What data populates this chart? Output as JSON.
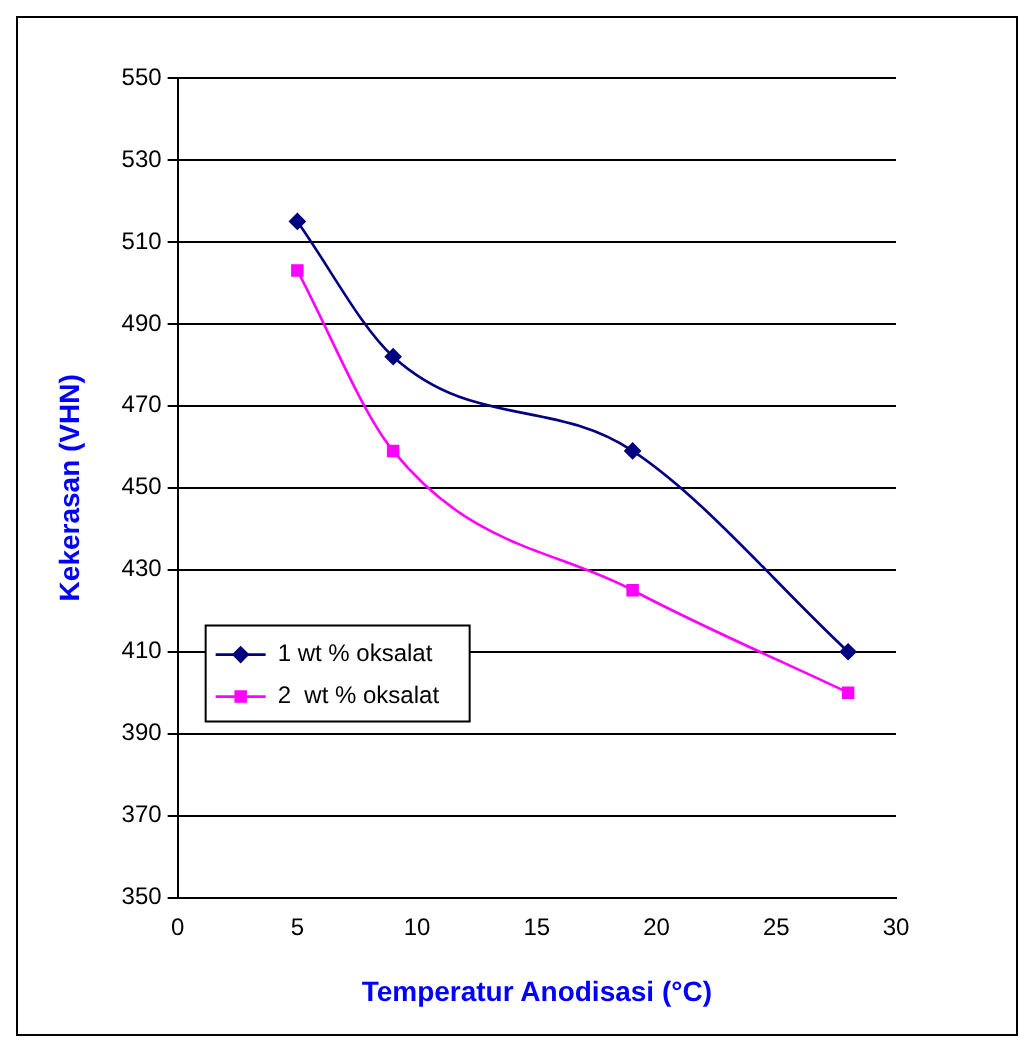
{
  "chart_data": {
    "type": "line",
    "xlabel": "Temperatur Anodisasi (°C)",
    "ylabel": "Kekerasan (VHN)",
    "x": [
      5,
      9,
      19,
      28
    ],
    "series": [
      {
        "name": "1 wt % oksalat",
        "color": "#000080",
        "marker": "diamond",
        "values": [
          515,
          482,
          459,
          410
        ]
      },
      {
        "name": "2  wt % oksalat",
        "color": "#ff00ff",
        "marker": "square",
        "values": [
          503,
          459,
          425,
          400
        ]
      }
    ],
    "xlim": [
      0,
      30
    ],
    "xticks": [
      0,
      5,
      10,
      15,
      20,
      25,
      30
    ],
    "ylim": [
      350,
      550
    ],
    "yticks": [
      350,
      370,
      390,
      410,
      430,
      450,
      470,
      490,
      510,
      530,
      550
    ],
    "grid": "y",
    "legend": "bottom left"
  }
}
